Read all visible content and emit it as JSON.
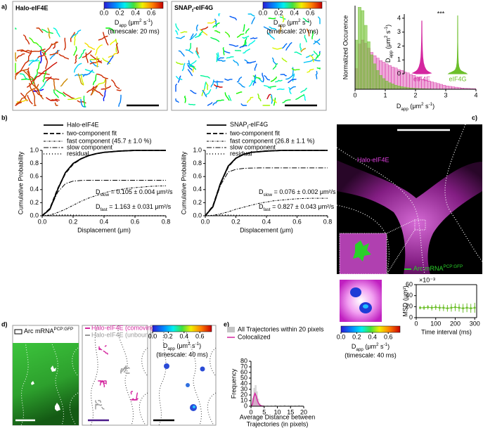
{
  "panel_labels": [
    "a)",
    "b)",
    "c)",
    "d)",
    "e)"
  ],
  "images": {
    "a1_title": "Halo-eIF4E",
    "a2_title": [
      {
        "text": "SNAP"
      },
      {
        "text": "f",
        "pos": "sub"
      },
      {
        "text": "-eIF4G"
      }
    ],
    "c_title": "Halo-eIF4E",
    "c_legend": [
      {
        "text": "Arc mRNA"
      },
      {
        "text": "PCP:GFP",
        "pos": "sup"
      }
    ],
    "d1_legend": [
      {
        "text": "Arc mRNA"
      },
      {
        "text": "PCP:GFP",
        "pos": "sup"
      }
    ],
    "d2_legend": [
      "Halo-eIF4E (comoving)",
      "Halo-eIF4E (unbound)"
    ]
  },
  "colorbars": [
    {
      "lim": [
        0,
        0.75
      ],
      "ticks": [
        {
          "value": 0,
          "label": "0.0"
        },
        0.2,
        0.4,
        0.6
      ],
      "label": [
        {
          "text": "D"
        },
        {
          "text": "app",
          "pos": "sub"
        },
        {
          "text": " (μm"
        },
        {
          "text": "2",
          "pos": "sup"
        },
        {
          "text": " s"
        },
        {
          "text": "-1",
          "pos": "sup"
        },
        {
          "text": ")"
        }
      ],
      "timescale": "(timescale: 20 ms)"
    },
    {
      "lim": [
        0,
        0.75
      ],
      "ticks": [
        {
          "value": 0,
          "label": "0.0"
        },
        0.2,
        0.4,
        0.6
      ],
      "label": [
        {
          "text": "D"
        },
        {
          "text": "app",
          "pos": "sub"
        },
        {
          "text": " (μm"
        },
        {
          "text": "2",
          "pos": "sup"
        },
        {
          "text": " s"
        },
        {
          "text": "-1",
          "pos": "sup"
        },
        {
          "text": ")"
        }
      ],
      "timescale": "(timescale: 20 ms)"
    },
    {
      "lim": [
        0,
        0.75
      ],
      "ticks": [
        {
          "value": 0,
          "label": "0.0"
        },
        0.2,
        0.4,
        0.6
      ],
      "label": [
        {
          "text": "D"
        },
        {
          "text": "app",
          "pos": "sub"
        },
        {
          "text": " (μm"
        },
        {
          "text": "2",
          "pos": "sup"
        },
        {
          "text": " s"
        },
        {
          "text": "-1",
          "pos": "sup"
        },
        {
          "text": ")"
        }
      ],
      "timescale": "(timescale: 40 ms)"
    },
    {
      "lim": [
        0,
        0.75
      ],
      "ticks": [
        {
          "value": 0,
          "label": "0.0"
        },
        0.2,
        0.4,
        0.6
      ],
      "label": [
        {
          "text": "D"
        },
        {
          "text": "app",
          "pos": "sub"
        },
        {
          "text": " (μm"
        },
        {
          "text": "2",
          "pos": "sup"
        },
        {
          "text": " s"
        },
        {
          "text": "-1",
          "pos": "sup"
        },
        {
          "text": ")"
        }
      ],
      "timescale": "(timescale: 40 ms)"
    }
  ],
  "chart_data": [
    {
      "type": "histogram",
      "ylabel": "Normalized Occurence",
      "xlabel": [
        {
          "text": "D"
        },
        {
          "text": "app",
          "pos": "sub"
        },
        {
          "text": " (μm"
        },
        {
          "text": "2",
          "pos": "sup"
        },
        {
          "text": " s"
        },
        {
          "text": "-1",
          "pos": "sup"
        },
        {
          "text": ")"
        }
      ],
      "xlim": [
        0,
        4
      ],
      "xticks": [
        0,
        1,
        2,
        3,
        4
      ],
      "ylim": [
        0,
        1.02
      ],
      "bins": [
        0,
        0.1,
        0.2,
        0.3,
        0.4,
        0.5,
        0.6,
        0.7,
        0.8,
        0.9,
        1,
        1.1,
        1.2,
        1.3,
        1.4,
        1.5,
        1.6,
        1.7,
        1.8,
        1.9,
        2,
        2.1,
        2.2,
        2.3,
        2.4,
        2.5,
        2.6,
        2.7,
        2.8,
        2.9,
        3,
        3.1,
        3.2,
        3.3,
        3.4,
        3.5,
        3.6,
        3.7,
        3.8,
        3.9,
        4
      ],
      "series": [
        {
          "color": "#d4279f",
          "values": [
            0.25,
            0.55,
            0.6,
            0.56,
            0.5,
            0.45,
            0.41,
            0.38,
            0.35,
            0.33,
            0.31,
            0.29,
            0.27,
            0.26,
            0.24,
            0.23,
            0.21,
            0.2,
            0.18,
            0.17,
            0.15,
            0.14,
            0.12,
            0.11,
            0.1,
            0.09,
            0.08,
            0.07,
            0.06,
            0.05,
            0.04,
            0.035,
            0.03,
            0.025,
            0.02,
            0.015,
            0.012,
            0.01,
            0.008,
            0.006
          ]
        },
        {
          "color": "#6cbf2a",
          "values": [
            0.6,
            1,
            0.96,
            0.78,
            0.58,
            0.42,
            0.31,
            0.23,
            0.17,
            0.13,
            0.1,
            0.08,
            0.065,
            0.05,
            0.04,
            0.032,
            0.026,
            0.02,
            0.016,
            0.013,
            0.01,
            0.008,
            0.006,
            0.005,
            0.004,
            0.003,
            0.003,
            0.002,
            0.002,
            0.001,
            0.001,
            0.001,
            0.001,
            0,
            0,
            0,
            0,
            0,
            0,
            0
          ]
        }
      ],
      "inset": {
        "type": "violin",
        "annotation": "***",
        "ylabel": [
          {
            "text": "D"
          },
          {
            "text": "app",
            "pos": "sub"
          },
          {
            "text": " (μm"
          },
          {
            "text": "2",
            "pos": "sup"
          },
          {
            "text": " s"
          },
          {
            "text": "-1",
            "pos": "sup"
          },
          {
            "text": ")"
          }
        ],
        "ylim": [
          0,
          4.3
        ],
        "yticks": [
          0,
          1,
          2,
          3,
          4
        ],
        "violins": [
          {
            "name": "eIF4E",
            "color": "#d4279f",
            "y": [
              0,
              0.05,
              0.1,
              0.2,
              0.3,
              0.5,
              0.8,
              1.2,
              1.7,
              2.3,
              3,
              3.8
            ],
            "width": [
              0.6,
              1,
              0.85,
              0.6,
              0.45,
              0.3,
              0.18,
              0.1,
              0.06,
              0.03,
              0.015,
              0.005
            ]
          },
          {
            "name": "eIF4G",
            "color": "#6cbf2a",
            "y": [
              0,
              0.05,
              0.1,
              0.2,
              0.3,
              0.5,
              0.8,
              1.2,
              1.7,
              2.3,
              3,
              4.2
            ],
            "width": [
              1,
              0.9,
              0.7,
              0.4,
              0.25,
              0.13,
              0.07,
              0.04,
              0.02,
              0.01,
              0.006,
              0.002
            ]
          }
        ]
      }
    },
    {
      "type": "line",
      "ylabel": "Cumulative Probability",
      "xlabel": "Displacement (μm)",
      "xlim": [
        0,
        0.8
      ],
      "xticks": [
        {
          "value": 0,
          "label": "0.0"
        },
        0.2,
        0.4,
        0.6,
        0.8
      ],
      "ylim": [
        0,
        1
      ],
      "yticks": [
        {
          "value": 0,
          "label": "0.0"
        },
        0.2,
        0.4,
        0.6,
        0.8,
        {
          "value": 1,
          "label": "1.0"
        }
      ],
      "x": [
        0,
        0.05,
        0.1,
        0.15,
        0.2,
        0.25,
        0.3,
        0.35,
        0.4,
        0.45,
        0.5,
        0.55,
        0.6,
        0.65,
        0.7,
        0.75,
        0.8
      ],
      "series": [
        {
          "name": "Halo-eIF4E",
          "color": "#000000",
          "style": "solid",
          "values": [
            0,
            0.1,
            0.4,
            0.66,
            0.8,
            0.87,
            0.92,
            0.95,
            0.97,
            0.98,
            0.99,
            0.995,
            1,
            1,
            1,
            1,
            1
          ]
        },
        {
          "name": "two-component fit",
          "color": "#000000",
          "style": "dash",
          "values": [
            0,
            0.11,
            0.41,
            0.65,
            0.79,
            0.87,
            0.92,
            0.95,
            0.97,
            0.98,
            0.99,
            0.995,
            1,
            1,
            1,
            1,
            1
          ]
        },
        {
          "name": "fast component (45.7 ± 1.0 %)",
          "color": "#000000",
          "style": "dashdotdot",
          "values": [
            0,
            0.01,
            0.05,
            0.1,
            0.16,
            0.22,
            0.27,
            0.31,
            0.35,
            0.38,
            0.4,
            0.42,
            0.43,
            0.44,
            0.45,
            0.455,
            0.457
          ]
        },
        {
          "name": "slow component",
          "color": "#000000",
          "style": "dashdot",
          "values": [
            0,
            0.1,
            0.36,
            0.49,
            0.53,
            0.54,
            0.543,
            0.543,
            0.543,
            0.543,
            0.543,
            0.543,
            0.543,
            0.543,
            0.543,
            0.543,
            0.543
          ]
        },
        {
          "name": "residual",
          "color": "#000000",
          "style": "dot",
          "values": [
            0,
            0.005,
            0.01,
            0.012,
            0.01,
            0.006,
            0.004,
            0.003,
            0.002,
            0.001,
            0.001,
            0,
            0,
            0,
            0,
            0,
            0
          ]
        }
      ],
      "annotations": [
        [
          {
            "text": "D"
          },
          {
            "text": "slow",
            "pos": "sub"
          },
          {
            "text": " = 0.105 ± 0.004 μm²/s"
          }
        ],
        [
          {
            "text": "D"
          },
          {
            "text": "fast",
            "pos": "sub"
          },
          {
            "text": " = 1.163 ± 0.031 μm²/s"
          }
        ]
      ]
    },
    {
      "type": "line",
      "ylabel": "Cumulative Probability",
      "xlabel": "Displacement (μm)",
      "xlim": [
        0,
        0.8
      ],
      "xticks": [
        {
          "value": 0,
          "label": "0.0"
        },
        0.2,
        0.4,
        0.6,
        0.8
      ],
      "ylim": [
        0,
        1
      ],
      "yticks": [
        {
          "value": 0,
          "label": "0.0"
        },
        0.2,
        0.4,
        0.6,
        0.8,
        {
          "value": 1,
          "label": "1.0"
        }
      ],
      "x": [
        0,
        0.05,
        0.1,
        0.15,
        0.2,
        0.25,
        0.3,
        0.35,
        0.4,
        0.45,
        0.5,
        0.55,
        0.6,
        0.65,
        0.7,
        0.75,
        0.8
      ],
      "series": [
        {
          "name": [
            {
              "text": "SNAP"
            },
            {
              "text": "f",
              "pos": "sub"
            },
            {
              "text": "-eIF4G"
            }
          ],
          "color": "#000000",
          "style": "solid",
          "values": [
            0,
            0.14,
            0.5,
            0.76,
            0.88,
            0.94,
            0.97,
            0.98,
            0.99,
            0.995,
            1,
            1,
            1,
            1,
            1,
            1,
            1
          ]
        },
        {
          "name": "two-component fit",
          "color": "#000000",
          "style": "dash",
          "values": [
            0,
            0.15,
            0.5,
            0.75,
            0.88,
            0.94,
            0.97,
            0.98,
            0.99,
            0.995,
            1,
            1,
            1,
            1,
            1,
            1,
            1
          ]
        },
        {
          "name": "fast component (26.8 ± 1.1 %)",
          "color": "#000000",
          "style": "dashdotdot",
          "values": [
            0,
            0.005,
            0.03,
            0.06,
            0.1,
            0.13,
            0.16,
            0.19,
            0.21,
            0.23,
            0.24,
            0.25,
            0.26,
            0.265,
            0.267,
            0.268,
            0.268
          ]
        },
        {
          "name": "slow component",
          "color": "#000000",
          "style": "dashdot",
          "values": [
            0,
            0.13,
            0.47,
            0.67,
            0.71,
            0.725,
            0.73,
            0.732,
            0.732,
            0.732,
            0.732,
            0.732,
            0.732,
            0.732,
            0.732,
            0.732,
            0.732
          ]
        },
        {
          "name": "residual",
          "color": "#000000",
          "style": "dot",
          "values": [
            0,
            0.006,
            0.012,
            0.01,
            0.007,
            0.004,
            0.002,
            0.001,
            0.001,
            0,
            0,
            0,
            0,
            0,
            0,
            0,
            0
          ]
        }
      ],
      "annotations": [
        [
          {
            "text": "D"
          },
          {
            "text": "slow",
            "pos": "sub"
          },
          {
            "text": " = 0.076 ± 0.002 μm²/s"
          }
        ],
        [
          {
            "text": "D"
          },
          {
            "text": "fast",
            "pos": "sub"
          },
          {
            "text": " = 0.827 ± 0.043 μm²/s"
          }
        ]
      ]
    },
    {
      "type": "line",
      "ylabel": "MSD (μm²)",
      "xlabel": "Time interval (ms)",
      "multiplier": "×10⁻³",
      "xlim": [
        0,
        310
      ],
      "xticks": [
        0,
        100,
        200,
        300
      ],
      "ylim": [
        0,
        60
      ],
      "yticks": [
        0,
        20,
        40,
        60
      ],
      "x": [
        20,
        40,
        60,
        80,
        100,
        120,
        140,
        160,
        180,
        200,
        220,
        240,
        260,
        280,
        300
      ],
      "series": [
        {
          "color": "#6cbf2a",
          "style": "solid",
          "values": [
            18,
            18,
            19,
            18,
            19,
            18,
            18,
            17,
            18,
            19,
            18,
            17,
            18,
            17,
            18
          ],
          "error": [
            3,
            4,
            4,
            5,
            5,
            6,
            6,
            6,
            7,
            7,
            7,
            8,
            8,
            8,
            9
          ]
        }
      ]
    },
    {
      "type": "histogram",
      "ylabel": "Frequency",
      "xlabel": [
        "Average Distance between",
        "Trajectories (in pixels)"
      ],
      "xlim": [
        0,
        20
      ],
      "xticks": [
        0,
        5,
        10,
        15,
        20
      ],
      "ylim": [
        0,
        80
      ],
      "yticks": [
        0,
        10,
        20,
        30,
        40,
        50,
        60,
        70,
        80
      ],
      "bins": [
        0,
        0.5,
        1,
        1.5,
        2,
        2.5,
        3,
        3.5,
        4,
        4.5,
        5,
        5.5,
        6,
        6.5,
        7,
        7.5,
        8,
        8.5,
        9,
        9.5,
        10,
        10.5,
        11,
        11.5,
        12,
        12.5,
        13,
        13.5,
        14,
        14.5,
        15,
        15.5,
        16,
        16.5,
        17,
        17.5,
        18,
        18.5,
        19,
        19.5,
        20
      ],
      "series": [
        {
          "name": "All Trajectories within 20 pixels",
          "color": "#c4c4c4",
          "values": [
            4,
            14,
            32,
            37,
            26,
            13,
            5,
            2,
            1,
            1,
            0,
            0,
            1,
            0,
            0,
            1,
            0,
            0,
            2,
            0,
            0,
            0,
            1,
            0,
            0,
            2,
            0,
            0,
            1,
            0,
            1,
            0,
            0,
            1,
            0,
            0,
            2,
            0,
            1,
            0
          ]
        },
        {
          "name": "Colocalized",
          "color": "#d4279f",
          "x": [
            0,
            0.5,
            1,
            1.5,
            2,
            2.5,
            3,
            3.5,
            4,
            4.5,
            5
          ],
          "values": [
            0,
            3,
            16,
            23,
            18,
            9,
            4,
            1.5,
            0.5,
            0.2,
            0
          ]
        }
      ]
    }
  ]
}
